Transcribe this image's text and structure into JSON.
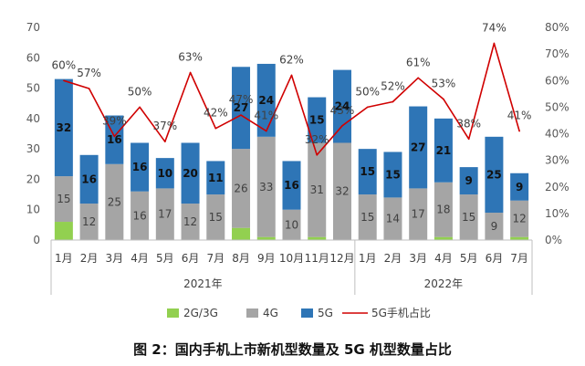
{
  "chart_data": {
    "type": "bar",
    "stacked": true,
    "title": "图 2：国内手机上市新机型数量及 5G 机型数量占比",
    "categories": [
      "1月",
      "2月",
      "3月",
      "4月",
      "5月",
      "6月",
      "7月",
      "8月",
      "9月",
      "10月",
      "11月",
      "12月",
      "1月",
      "2月",
      "3月",
      "4月",
      "5月",
      "6月",
      "7月"
    ],
    "category_groups": [
      {
        "label": "2021年",
        "count": 12
      },
      {
        "label": "2022年",
        "count": 7
      }
    ],
    "y_left": {
      "range": [
        0,
        70
      ],
      "tick_labels": [
        "0",
        "10",
        "20",
        "30",
        "40",
        "50",
        "60",
        "70"
      ]
    },
    "y_right": {
      "range": [
        0,
        80
      ],
      "tick_labels": [
        "0%",
        "10%",
        "20%",
        "30%",
        "40%",
        "50%",
        "60%",
        "70%",
        "80%"
      ]
    },
    "series": [
      {
        "name": "2G/3G",
        "type": "bar",
        "axis": "left",
        "color": "#92D050",
        "show_labels": false,
        "values": [
          6,
          0,
          0,
          0,
          0,
          0,
          0,
          4,
          1,
          0,
          1,
          0,
          0,
          0,
          0,
          1,
          0,
          0,
          1
        ]
      },
      {
        "name": "4G",
        "type": "bar",
        "axis": "left",
        "color": "#A5A5A5",
        "label_color": "#404040",
        "show_labels": true,
        "values": [
          15,
          12,
          25,
          16,
          17,
          12,
          15,
          26,
          33,
          10,
          31,
          32,
          15,
          14,
          17,
          18,
          15,
          9,
          12
        ]
      },
      {
        "name": "5G",
        "type": "bar",
        "axis": "left",
        "color": "#2E75B6",
        "label_color": "#111111",
        "show_labels": true,
        "values": [
          32,
          16,
          16,
          16,
          10,
          20,
          11,
          27,
          24,
          16,
          15,
          24,
          15,
          15,
          27,
          21,
          9,
          25,
          9
        ]
      },
      {
        "name": "5G手机占比",
        "type": "line",
        "axis": "right",
        "color": "#D00000",
        "values": [
          60,
          57,
          39,
          50,
          37,
          63,
          42,
          47,
          41,
          62,
          32,
          43,
          50,
          52,
          61,
          53,
          38,
          74,
          41
        ],
        "labels": [
          "60%",
          "57%",
          "39%",
          "50%",
          "37%",
          "63%",
          "42%",
          "47%",
          "41%",
          "62%",
          "32%",
          "43%",
          "50%",
          "52%",
          "61%",
          "53%",
          "38%",
          "74%",
          "41%"
        ]
      }
    ],
    "legend": "bottom",
    "grid": false
  }
}
